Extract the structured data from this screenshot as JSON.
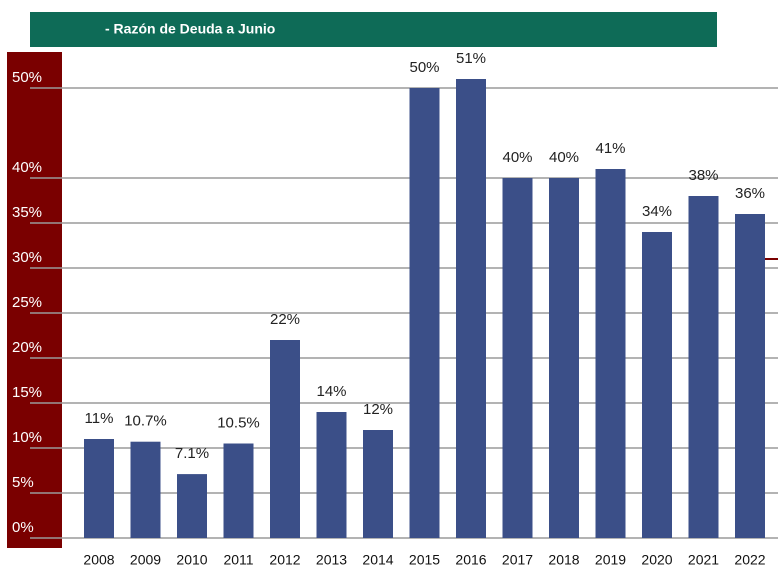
{
  "chart_data": {
    "type": "bar",
    "title": "- Razón de Deuda  a  Junio",
    "categories": [
      "2008",
      "2009",
      "2010",
      "2011",
      "2012",
      "2013",
      "2014",
      "2015",
      "2016",
      "2017",
      "2018",
      "2019",
      "2020",
      "2021",
      "2022"
    ],
    "values": [
      11,
      10.7,
      7.1,
      10.5,
      22,
      14,
      12,
      50,
      51,
      40,
      40,
      41,
      34,
      38,
      36
    ],
    "value_labels": [
      "11%",
      "10.7%",
      "7.1%",
      "10.5%",
      "22%",
      "14%",
      "12%",
      "50%",
      "51%",
      "40%",
      "40%",
      "41%",
      "34%",
      "38%",
      "36%"
    ],
    "color": "#3b4f88",
    "ylim": [
      0,
      50
    ],
    "yticks": [
      {
        "value": 50,
        "label": "50%"
      },
      {
        "value": 40,
        "label": "40%"
      },
      {
        "value": 35,
        "label": "35%"
      },
      {
        "value": 30,
        "label": "30%"
      },
      {
        "value": 25,
        "label": "25%"
      },
      {
        "value": 20,
        "label": "20%"
      },
      {
        "value": 15,
        "label": "15%"
      },
      {
        "value": 10,
        "label": "10%"
      },
      {
        "value": 5,
        "label": "5%"
      },
      {
        "value": 0,
        "label": "0%"
      }
    ],
    "grid": true
  }
}
